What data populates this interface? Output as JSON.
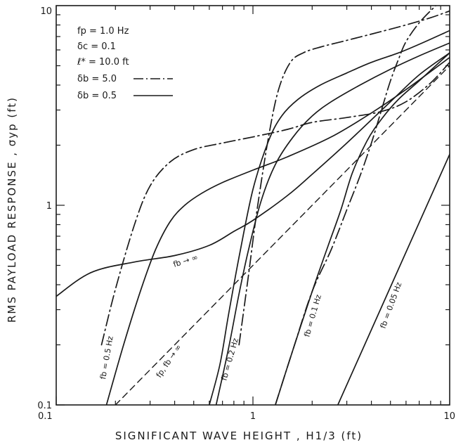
{
  "chart_data": {
    "type": "line",
    "xlabel": "SIGNIFICANT  WAVE  HEIGHT ,  H1/3 (ft)",
    "ylabel": "RMS  PAYLOAD  RESPONSE ,  σyp (ft)",
    "xscale": "log",
    "yscale": "log",
    "xlim": [
      0.1,
      10
    ],
    "ylim": [
      0.1,
      10
    ],
    "xticklabels": [
      "0.1",
      "1",
      "10"
    ],
    "yticklabels": [
      "0.1",
      "1",
      "10"
    ],
    "grid": false,
    "legend_position": "top-left",
    "parameters": [
      "fp = 1.0 Hz",
      "δc = 0.1",
      "ℓ* = 10.0 ft"
    ],
    "legend": [
      {
        "label": "δb = 5.0",
        "style": "dashdot"
      },
      {
        "label": "δb = 0.5",
        "style": "solid"
      }
    ],
    "annotations": [
      "fb → ∞",
      "fp, fb → ∞",
      "fb = 0.5 Hz",
      "fb = 0.2 Hz",
      "fb = 0.1 Hz",
      "fb = 0.05 Hz"
    ],
    "series": [
      {
        "style": "dashed",
        "x": [
          0.2,
          1,
          10
        ],
        "y": [
          0.1,
          0.5,
          5
        ]
      },
      {
        "style": "solid",
        "x": [
          0.1,
          0.15,
          0.25,
          0.4,
          0.6,
          0.8,
          1.0,
          1.5,
          2,
          3,
          5,
          7,
          10
        ],
        "y": [
          0.35,
          0.46,
          0.52,
          0.56,
          0.63,
          0.74,
          0.84,
          1.12,
          1.43,
          2.05,
          3.3,
          4.5,
          5.8
        ]
      },
      {
        "style": "solid",
        "x": [
          0.18,
          0.22,
          0.27,
          0.32,
          0.38,
          0.45,
          0.55,
          0.7,
          1,
          1.5,
          2.5,
          4,
          6,
          10
        ],
        "y": [
          0.1,
          0.2,
          0.38,
          0.6,
          0.83,
          1.0,
          1.15,
          1.3,
          1.5,
          1.75,
          2.2,
          2.9,
          3.8,
          5.5
        ]
      },
      {
        "style": "dashdot",
        "x": [
          0.17,
          0.2,
          0.25,
          0.3,
          0.38,
          0.5,
          0.7,
          1,
          1.5,
          2,
          3,
          4.5,
          6,
          8,
          10
        ],
        "y": [
          0.2,
          0.38,
          0.8,
          1.25,
          1.65,
          1.9,
          2.05,
          2.2,
          2.4,
          2.6,
          2.75,
          2.95,
          3.3,
          4.1,
          5.2
        ]
      },
      {
        "style": "solid",
        "x": [
          0.6,
          0.68,
          0.75,
          0.85,
          1,
          1.2,
          1.4,
          1.7,
          2.2,
          3,
          4,
          5.5,
          7,
          10
        ],
        "y": [
          0.1,
          0.16,
          0.28,
          0.55,
          1.2,
          2.1,
          2.8,
          3.4,
          4.0,
          4.6,
          5.2,
          5.8,
          6.4,
          7.5
        ]
      },
      {
        "style": "solid",
        "x": [
          0.65,
          0.75,
          0.85,
          0.95,
          1.1,
          1.3,
          1.6,
          2,
          2.5,
          3.5,
          5,
          7,
          10
        ],
        "y": [
          0.1,
          0.19,
          0.36,
          0.6,
          1.05,
          1.6,
          2.2,
          2.8,
          3.3,
          4.0,
          4.8,
          5.6,
          6.5
        ]
      },
      {
        "style": "dashdot",
        "x": [
          0.85,
          0.95,
          1.05,
          1.2,
          1.35,
          1.55,
          1.8,
          2.2,
          3,
          4,
          6,
          8,
          10
        ],
        "y": [
          0.2,
          0.45,
          0.95,
          2.2,
          3.8,
          5.2,
          5.8,
          6.2,
          6.7,
          7.2,
          8.0,
          8.7,
          9.4
        ]
      },
      {
        "style": "solid",
        "x": [
          1.3,
          1.6,
          2,
          2.4,
          2.8,
          3.2,
          3.8,
          4.5,
          5.5,
          7,
          10
        ],
        "y": [
          0.1,
          0.19,
          0.37,
          0.62,
          0.95,
          1.45,
          2.1,
          2.7,
          3.4,
          4.2,
          5.8
        ]
      },
      {
        "style": "dashdot",
        "x": [
          1.3,
          1.6,
          2,
          2.5,
          3,
          3.5,
          4,
          4.5,
          5,
          5.5,
          6,
          7,
          8.5
        ],
        "y": [
          0.1,
          0.19,
          0.37,
          0.6,
          0.95,
          1.4,
          2.05,
          3.0,
          4.2,
          5.4,
          6.6,
          8.2,
          10
        ]
      },
      {
        "style": "solid",
        "x": [
          2.7,
          10
        ],
        "y": [
          0.1,
          1.8
        ]
      }
    ]
  }
}
